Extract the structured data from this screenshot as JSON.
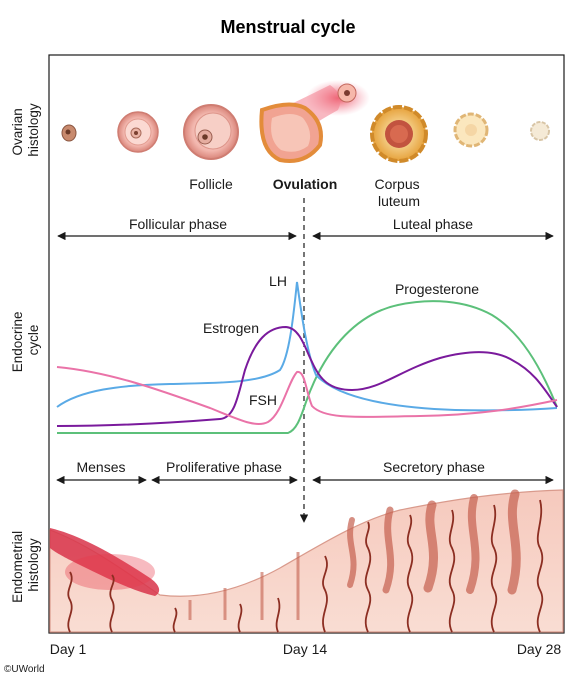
{
  "title": "Menstrual cycle",
  "sections": {
    "ovarian": [
      "Ovarian",
      "histology"
    ],
    "endocrine": [
      "Endocrine",
      "cycle"
    ],
    "endometrial": [
      "Endometrial",
      "histology"
    ]
  },
  "ovary_labels": {
    "follicle": "Follicle",
    "ovulation": "Ovulation",
    "corpus": [
      "Corpus",
      "luteum"
    ]
  },
  "phases_top": {
    "follicular": "Follicular phase",
    "luteal": "Luteal phase"
  },
  "phases_bottom": {
    "menses": "Menses",
    "proliferative": "Proliferative phase",
    "secretory": "Secretory phase"
  },
  "hormones": {
    "lh": {
      "label": "LH",
      "color": "#5aaae6"
    },
    "progesterone": {
      "label": "Progesterone",
      "color": "#5cc07a"
    },
    "estrogen": {
      "label": "Estrogen",
      "color": "#7a1a9c"
    },
    "fsh": {
      "label": "FSH",
      "color": "#ea73a8"
    }
  },
  "days": {
    "start": "Day 1",
    "mid": "Day 14",
    "end": "Day 28"
  },
  "credit": "©UWorld"
}
